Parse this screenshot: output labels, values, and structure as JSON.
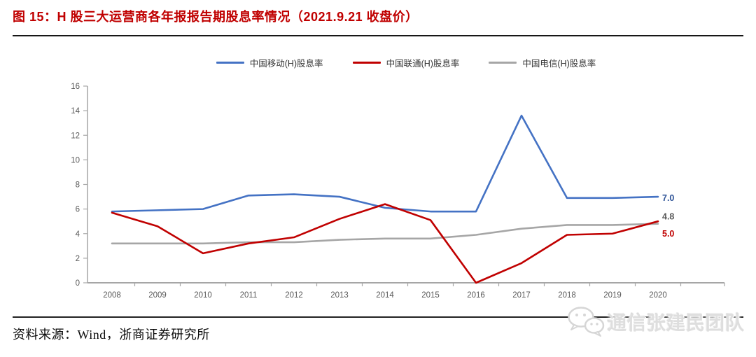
{
  "header": {
    "title": "图 15：H 股三大运营商各年报报告期股息率情况（2021.9.21 收盘价）"
  },
  "footer": {
    "source_label": "资料来源：Wind，浙商证券研究所"
  },
  "watermark": {
    "text": "通信张建民团队",
    "icon": "wechat-icon"
  },
  "chart_data": {
    "type": "line",
    "title": "",
    "xlabel": "",
    "ylabel": "",
    "categories": [
      "2008",
      "2009",
      "2010",
      "2011",
      "2012",
      "2013",
      "2014",
      "2015",
      "2016",
      "2017",
      "2018",
      "2019",
      "2020"
    ],
    "series": [
      {
        "name": "中国移动(H)股息率",
        "color": "#4472C4",
        "values": [
          5.8,
          5.9,
          6.0,
          7.1,
          7.2,
          7.0,
          6.1,
          5.8,
          5.8,
          13.6,
          6.9,
          6.9,
          7.0
        ],
        "end_label": "7.0",
        "end_label_color": "#2E5397",
        "end_label_dy": 6
      },
      {
        "name": "中国联通(H)股息率",
        "color": "#C00000",
        "values": [
          5.7,
          4.6,
          2.4,
          3.2,
          3.7,
          5.2,
          6.4,
          5.1,
          0.0,
          1.6,
          3.9,
          4.0,
          5.0
        ],
        "end_label": "5.0",
        "end_label_color": "#C00000",
        "end_label_dy": 22
      },
      {
        "name": "中国电信(H)股息率",
        "color": "#A6A6A6",
        "values": [
          3.2,
          3.2,
          3.2,
          3.3,
          3.3,
          3.5,
          3.6,
          3.6,
          3.9,
          4.4,
          4.7,
          4.7,
          4.8
        ],
        "end_label": "4.8",
        "end_label_color": "#595959",
        "end_label_dy": -6
      }
    ],
    "ylim": [
      0,
      16
    ],
    "ytick_step": 2,
    "grid": false,
    "legend_position": "top",
    "axis_color": "#A6A6A6",
    "tick_text_color": "#595959"
  }
}
